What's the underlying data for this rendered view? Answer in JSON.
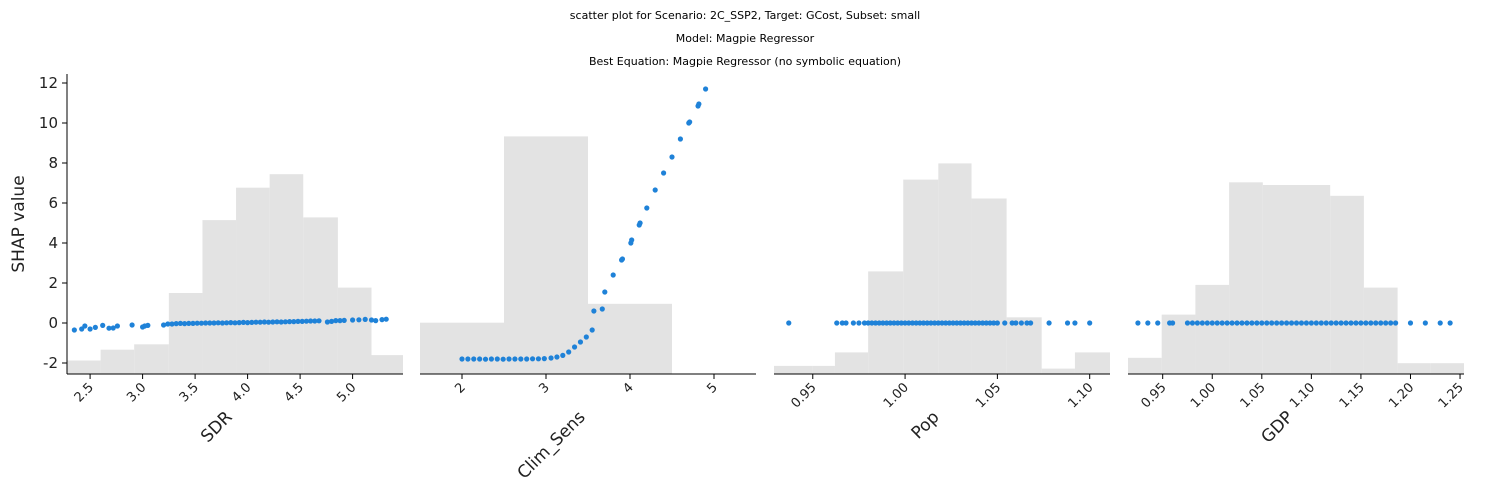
{
  "title": {
    "line1": "scatter plot for Scenario: 2C_SSP2, Target: GCost, Subset: small",
    "line2": "Model: Magpie Regressor",
    "line3": "Best Equation: Magpie Regressor (no symbolic equation)"
  },
  "colors": {
    "points": "#1f82d8",
    "histogram": "#e3e3e3",
    "axis": "#000000"
  },
  "chart_data": {
    "type": "scatter",
    "ylabel": "SHAP value",
    "ylim": [
      -2.55,
      12.45
    ],
    "yticks": [
      -2,
      0,
      2,
      4,
      6,
      8,
      10,
      12
    ],
    "grid": false,
    "panels": [
      {
        "xlabel": "SDR",
        "xlim": [
          2.28,
          5.48
        ],
        "xticks": [
          2.5,
          3.0,
          3.5,
          4.0,
          4.5,
          5.0
        ],
        "xtick_labels": [
          "2.5",
          "3.0",
          "3.5",
          "4.0",
          "4.5",
          "5.0"
        ],
        "histogram": {
          "edges": [
            2.28,
            2.6,
            2.92,
            3.25,
            3.57,
            3.89,
            4.21,
            4.53,
            4.86,
            5.18,
            5.48
          ],
          "heights": [
            0.05,
            0.09,
            0.11,
            0.3,
            0.57,
            0.69,
            0.74,
            0.58,
            0.32,
            0.07
          ]
        },
        "points": {
          "x": [
            2.35,
            2.42,
            2.45,
            2.5,
            2.55,
            2.62,
            2.68,
            2.72,
            2.76,
            2.9,
            3.0,
            3.02,
            3.05,
            3.2,
            3.24,
            3.28,
            3.32,
            3.36,
            3.4,
            3.44,
            3.48,
            3.52,
            3.56,
            3.6,
            3.64,
            3.68,
            3.72,
            3.76,
            3.8,
            3.84,
            3.88,
            3.92,
            3.96,
            4.0,
            4.04,
            4.08,
            4.12,
            4.16,
            4.2,
            4.24,
            4.28,
            4.32,
            4.36,
            4.4,
            4.44,
            4.48,
            4.52,
            4.56,
            4.6,
            4.64,
            4.68,
            4.76,
            4.8,
            4.84,
            4.88,
            4.92,
            5.0,
            5.06,
            5.12,
            5.18,
            5.22,
            5.28,
            5.32
          ],
          "y": [
            -0.35,
            -0.3,
            -0.15,
            -0.3,
            -0.22,
            -0.12,
            -0.26,
            -0.25,
            -0.15,
            -0.1,
            -0.2,
            -0.15,
            -0.12,
            -0.1,
            -0.05,
            -0.05,
            -0.03,
            -0.02,
            -0.03,
            -0.02,
            -0.02,
            -0.01,
            -0.01,
            0.0,
            0.0,
            0.0,
            0.01,
            0.0,
            0.01,
            0.02,
            0.01,
            0.02,
            0.03,
            0.02,
            0.03,
            0.04,
            0.04,
            0.05,
            0.04,
            0.05,
            0.06,
            0.05,
            0.06,
            0.07,
            0.07,
            0.08,
            0.08,
            0.09,
            0.1,
            0.1,
            0.11,
            0.05,
            0.08,
            0.12,
            0.12,
            0.13,
            0.15,
            0.16,
            0.18,
            0.15,
            0.12,
            0.17,
            0.19
          ]
        }
      },
      {
        "xlabel": "Clim_Sens",
        "xlim": [
          1.5,
          5.5
        ],
        "xticks": [
          2,
          3,
          4,
          5
        ],
        "xtick_labels": [
          "2",
          "3",
          "4",
          "5"
        ],
        "histogram": {
          "edges": [
            1.5,
            2.5,
            3.5,
            4.5,
            5.5
          ],
          "heights": [
            0.19,
            0.88,
            0.26,
            0.0
          ]
        },
        "points": {
          "x": [
            2.0,
            2.07,
            2.14,
            2.21,
            2.28,
            2.35,
            2.42,
            2.49,
            2.56,
            2.63,
            2.7,
            2.77,
            2.84,
            2.91,
            2.98,
            3.06,
            3.13,
            3.2,
            3.27,
            3.34,
            3.41,
            3.48,
            3.55,
            3.57,
            3.67,
            3.7,
            3.8,
            3.9,
            3.91,
            4.01,
            4.02,
            4.11,
            4.12,
            4.2,
            4.3,
            4.4,
            4.5,
            4.6,
            4.7,
            4.71,
            4.81,
            4.82,
            4.9
          ],
          "y": [
            -1.8,
            -1.8,
            -1.8,
            -1.8,
            -1.81,
            -1.8,
            -1.8,
            -1.81,
            -1.8,
            -1.8,
            -1.8,
            -1.8,
            -1.79,
            -1.79,
            -1.78,
            -1.75,
            -1.7,
            -1.62,
            -1.45,
            -1.2,
            -0.95,
            -0.7,
            -0.35,
            0.6,
            0.7,
            1.55,
            2.4,
            3.15,
            3.2,
            4.0,
            4.15,
            4.9,
            5.0,
            5.75,
            6.65,
            7.5,
            8.3,
            9.2,
            10.0,
            10.05,
            10.85,
            10.95,
            11.7
          ]
        }
      },
      {
        "xlabel": "Pop",
        "xlim": [
          0.929,
          1.111
        ],
        "xticks": [
          0.95,
          1.0,
          1.05,
          1.1
        ],
        "xtick_labels": [
          "0.95",
          "1.00",
          "1.05",
          "1.10"
        ],
        "histogram": {
          "edges": [
            0.929,
            0.95,
            0.962,
            0.98,
            0.999,
            1.018,
            1.036,
            1.055,
            1.074,
            1.092,
            1.111
          ],
          "heights": [
            0.03,
            0.03,
            0.08,
            0.38,
            0.72,
            0.78,
            0.65,
            0.21,
            0.02,
            0.08
          ]
        },
        "points": {
          "x": [
            0.937,
            0.963,
            0.966,
            0.968,
            0.972,
            0.975,
            0.978,
            0.98,
            0.982,
            0.984,
            0.986,
            0.988,
            0.99,
            0.992,
            0.994,
            0.996,
            0.998,
            1.0,
            1.002,
            1.004,
            1.006,
            1.008,
            1.01,
            1.012,
            1.014,
            1.016,
            1.018,
            1.02,
            1.022,
            1.024,
            1.026,
            1.028,
            1.03,
            1.032,
            1.034,
            1.036,
            1.038,
            1.04,
            1.042,
            1.044,
            1.046,
            1.048,
            1.05,
            1.054,
            1.058,
            1.06,
            1.063,
            1.066,
            1.068,
            1.078,
            1.088,
            1.092,
            1.1
          ],
          "y": [
            0.0,
            0.0,
            0.0,
            0.0,
            0.0,
            0.0,
            0.0,
            0.0,
            0.0,
            0.0,
            0.0,
            0.0,
            0.0,
            0.0,
            0.0,
            0.0,
            0.0,
            0.0,
            0.0,
            0.0,
            0.0,
            0.0,
            0.0,
            0.0,
            0.0,
            0.0,
            0.0,
            0.0,
            0.0,
            0.0,
            0.0,
            0.0,
            0.0,
            0.0,
            0.0,
            0.0,
            0.0,
            0.0,
            0.0,
            0.0,
            0.0,
            0.0,
            0.0,
            0.0,
            0.0,
            0.0,
            0.0,
            0.0,
            0.0,
            0.0,
            0.0,
            0.0,
            0.0
          ]
        }
      },
      {
        "xlabel": "GDP",
        "xlim": [
          0.915,
          1.254
        ],
        "xticks": [
          0.95,
          1.0,
          1.05,
          1.1,
          1.15,
          1.2,
          1.25
        ],
        "xtick_labels": [
          "0.95",
          "1.00",
          "1.05",
          "1.10",
          "1.15",
          "1.20",
          "1.25"
        ],
        "histogram": {
          "edges": [
            0.915,
            0.949,
            0.983,
            1.017,
            1.051,
            1.085,
            1.119,
            1.153,
            1.187,
            1.22,
            1.254
          ],
          "heights": [
            0.06,
            0.22,
            0.33,
            0.71,
            0.7,
            0.7,
            0.66,
            0.32,
            0.04,
            0.04
          ]
        },
        "points": {
          "x": [
            0.925,
            0.935,
            0.945,
            0.957,
            0.96,
            0.975,
            0.98,
            0.985,
            0.99,
            0.995,
            1.0,
            1.005,
            1.01,
            1.015,
            1.02,
            1.025,
            1.03,
            1.035,
            1.04,
            1.045,
            1.05,
            1.055,
            1.06,
            1.065,
            1.07,
            1.075,
            1.08,
            1.085,
            1.09,
            1.095,
            1.1,
            1.105,
            1.11,
            1.115,
            1.12,
            1.125,
            1.13,
            1.135,
            1.14,
            1.145,
            1.15,
            1.155,
            1.16,
            1.165,
            1.17,
            1.175,
            1.18,
            1.185,
            1.2,
            1.215,
            1.23,
            1.24
          ],
          "y": [
            0.0,
            0.0,
            0.0,
            0.0,
            0.0,
            0.0,
            0.0,
            0.0,
            0.0,
            0.0,
            0.0,
            0.0,
            0.0,
            0.0,
            0.0,
            0.0,
            0.0,
            0.0,
            0.0,
            0.0,
            0.0,
            0.0,
            0.0,
            0.0,
            0.0,
            0.0,
            0.0,
            0.0,
            0.0,
            0.0,
            0.0,
            0.0,
            0.0,
            0.0,
            0.0,
            0.0,
            0.0,
            0.0,
            0.0,
            0.0,
            0.0,
            0.0,
            0.0,
            0.0,
            0.0,
            0.0,
            0.0,
            0.0,
            0.0,
            0.0,
            0.0,
            0.0
          ]
        }
      }
    ]
  }
}
